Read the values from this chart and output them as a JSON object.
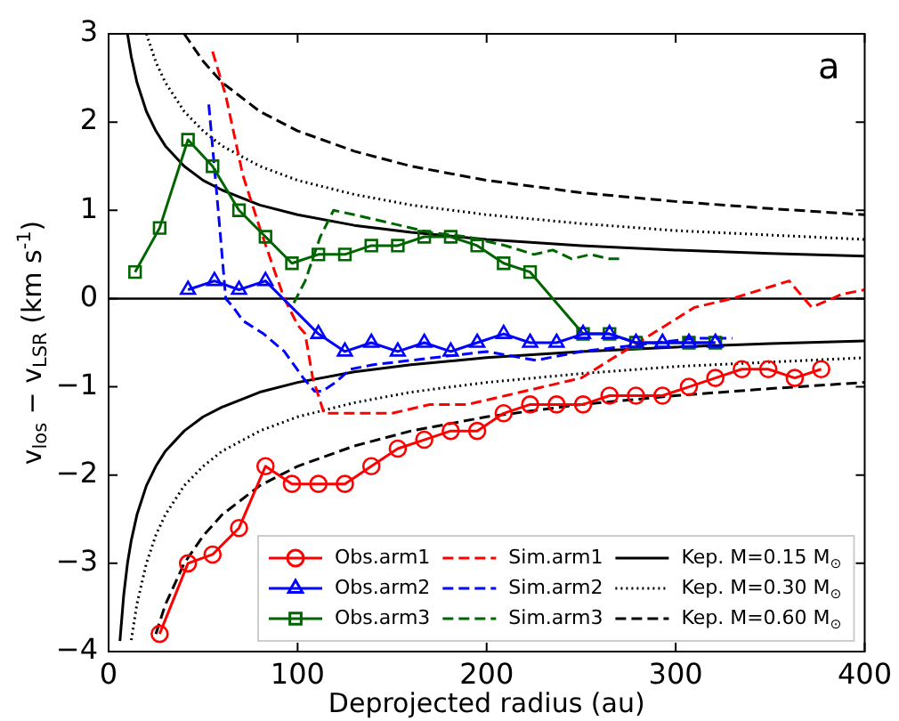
{
  "chart_data": {
    "type": "line",
    "xlabel": "Deprojected radius (au)",
    "ylabel": "v$_{los}$ − v$_{LSR}$ (km s$^{-1}$)",
    "xlim": [
      0,
      400
    ],
    "xticks": [
      0,
      100,
      200,
      300,
      400
    ],
    "ylim": [
      -4,
      3
    ],
    "yticks": [
      {
        "value": -4,
        "label": "−4"
      },
      {
        "value": -3,
        "label": "−3"
      },
      {
        "value": -2,
        "label": "−2"
      },
      {
        "value": -1,
        "label": "−1"
      },
      0,
      1,
      2,
      3
    ],
    "grid": false,
    "legend": "bottom right",
    "annotations": [
      "a"
    ],
    "ref_lines": [
      {
        "axis": "y",
        "value": 0,
        "color": "#000000"
      }
    ],
    "series": [
      {
        "name": "Obs.arm1",
        "color": "#ff0000",
        "marker": "circle",
        "line_style": "solid",
        "x": [
          27,
          42,
          55,
          69,
          83,
          97,
          111,
          125,
          139,
          153,
          167,
          181,
          195,
          209,
          223,
          237,
          251,
          265,
          279,
          293,
          307,
          321,
          335,
          349,
          363,
          377
        ],
        "values": [
          -3.8,
          -3.0,
          -2.9,
          -2.6,
          -1.9,
          -2.1,
          -2.1,
          -2.1,
          -1.9,
          -1.7,
          -1.6,
          -1.5,
          -1.5,
          -1.3,
          -1.2,
          -1.2,
          -1.2,
          -1.1,
          -1.1,
          -1.1,
          -1.0,
          -0.9,
          -0.8,
          -0.8,
          -0.9,
          -0.8
        ]
      },
      {
        "name": "Obs.arm2",
        "color": "#0000ff",
        "marker": "triangle",
        "line_style": "solid",
        "x": [
          42,
          56,
          69,
          83,
          111,
          125,
          139,
          153,
          167,
          181,
          195,
          209,
          223,
          237,
          251,
          265,
          279,
          293,
          307,
          321
        ],
        "values": [
          0.1,
          0.2,
          0.1,
          0.2,
          -0.4,
          -0.6,
          -0.5,
          -0.6,
          -0.5,
          -0.6,
          -0.5,
          -0.4,
          -0.5,
          -0.5,
          -0.4,
          -0.4,
          -0.5,
          -0.5,
          -0.5,
          -0.5
        ]
      },
      {
        "name": "Obs.arm3",
        "color": "#006400",
        "marker": "square",
        "line_style": "solid",
        "x": [
          14,
          27,
          42,
          55,
          69,
          83,
          97,
          111,
          125,
          139,
          153,
          167,
          181,
          195,
          209,
          223,
          251,
          265,
          279,
          307,
          321
        ],
        "values": [
          0.3,
          0.8,
          1.8,
          1.5,
          1.0,
          0.7,
          0.4,
          0.5,
          0.5,
          0.6,
          0.6,
          0.7,
          0.7,
          0.6,
          0.4,
          0.3,
          -0.4,
          -0.4,
          -0.5,
          -0.5,
          -0.5
        ]
      },
      {
        "name": "Sim.arm1",
        "color": "#ff0000",
        "marker": "none",
        "line_style": "dashed",
        "x": [
          55,
          62,
          71,
          80,
          88,
          93,
          100,
          104,
          108,
          114,
          130,
          150,
          170,
          190,
          210,
          230,
          250,
          265,
          280,
          295,
          310,
          330,
          345,
          360,
          372,
          388,
          400
        ],
        "values": [
          2.8,
          2.3,
          1.4,
          0.8,
          0.3,
          0,
          -0.3,
          -0.4,
          -0.9,
          -1.3,
          -1.3,
          -1.3,
          -1.2,
          -1.2,
          -1.1,
          -1.0,
          -0.9,
          -0.7,
          -0.5,
          -0.3,
          -0.1,
          0.0,
          0.1,
          0.2,
          -0.1,
          0.05,
          0.1
        ]
      },
      {
        "name": "Sim.arm2",
        "color": "#0000ff",
        "marker": "none",
        "line_style": "dashed",
        "x": [
          53,
          58,
          62,
          66,
          71,
          82,
          93,
          103,
          109,
          113,
          120,
          128,
          140,
          160,
          180,
          200,
          226,
          250,
          270,
          290,
          310,
          330
        ],
        "values": [
          2.2,
          1.0,
          0,
          -0.1,
          -0.25,
          -0.4,
          -0.6,
          -0.9,
          -1.05,
          -1.05,
          -0.95,
          -0.8,
          -0.75,
          -0.7,
          -0.65,
          -0.6,
          -0.7,
          -0.6,
          -0.55,
          -0.5,
          -0.45,
          -0.45
        ]
      },
      {
        "name": "Sim.arm3",
        "color": "#006400",
        "marker": "none",
        "line_style": "dashed",
        "x": [
          98,
          104,
          112,
          119,
          130,
          150,
          170,
          190,
          210,
          225,
          235,
          245,
          255,
          265,
          272
        ],
        "values": [
          -0.05,
          0.2,
          0.7,
          1.0,
          0.95,
          0.85,
          0.75,
          0.7,
          0.6,
          0.5,
          0.55,
          0.45,
          0.5,
          0.45,
          0.45
        ]
      },
      {
        "name": "Kep. M=0.15 M$_{⊙}$",
        "color": "#000000",
        "marker": "none",
        "line_style": "solid",
        "x": [
          10,
          12,
          15,
          20,
          25,
          30,
          40,
          50,
          60,
          80,
          100,
          130,
          160,
          200,
          250,
          300,
          350,
          400,
          null,
          6,
          8,
          10,
          12,
          15,
          20,
          25,
          30,
          40,
          50,
          60,
          80,
          100,
          130,
          160,
          200,
          250,
          300,
          350,
          400
        ],
        "values": [
          3.0,
          2.74,
          2.45,
          2.12,
          1.9,
          1.73,
          1.5,
          1.34,
          1.23,
          1.06,
          0.95,
          0.83,
          0.75,
          0.67,
          0.6,
          0.55,
          0.51,
          0.48,
          null,
          -3.88,
          -3.36,
          -3.0,
          -2.74,
          -2.45,
          -2.12,
          -1.9,
          -1.73,
          -1.5,
          -1.34,
          -1.23,
          -1.06,
          -0.95,
          -0.83,
          -0.75,
          -0.67,
          -0.6,
          -0.55,
          -0.51,
          -0.48
        ]
      },
      {
        "name": "Kep. M=0.30 M$_{⊙}$",
        "color": "#000000",
        "marker": "none",
        "line_style": "dotted",
        "x": [
          20,
          25,
          30,
          40,
          50,
          60,
          80,
          100,
          130,
          160,
          200,
          250,
          300,
          350,
          400,
          null,
          12,
          15,
          20,
          25,
          30,
          40,
          50,
          60,
          80,
          100,
          130,
          160,
          200,
          250,
          300,
          350,
          400
        ],
        "values": [
          3.0,
          2.68,
          2.45,
          2.12,
          1.9,
          1.73,
          1.5,
          1.34,
          1.18,
          1.06,
          0.95,
          0.85,
          0.77,
          0.72,
          0.67,
          null,
          -3.87,
          -3.46,
          -3.0,
          -2.68,
          -2.45,
          -2.12,
          -1.9,
          -1.73,
          -1.5,
          -1.34,
          -1.18,
          -1.06,
          -0.95,
          -0.85,
          -0.77,
          -0.72,
          -0.67
        ]
      },
      {
        "name": "Kep. M=0.60 M$_{⊙}$",
        "color": "#000000",
        "marker": "none",
        "line_style": "dashed",
        "x": [
          40,
          50,
          60,
          80,
          100,
          130,
          160,
          200,
          250,
          300,
          350,
          400,
          null,
          25,
          30,
          40,
          50,
          60,
          80,
          100,
          130,
          160,
          200,
          250,
          300,
          350,
          400
        ],
        "values": [
          3.0,
          2.69,
          2.45,
          2.12,
          1.9,
          1.67,
          1.5,
          1.34,
          1.2,
          1.1,
          1.02,
          0.95,
          null,
          -3.8,
          -3.47,
          -3.0,
          -2.69,
          -2.45,
          -2.12,
          -1.9,
          -1.67,
          -1.5,
          -1.34,
          -1.2,
          -1.1,
          -1.02,
          -0.95
        ]
      }
    ]
  }
}
